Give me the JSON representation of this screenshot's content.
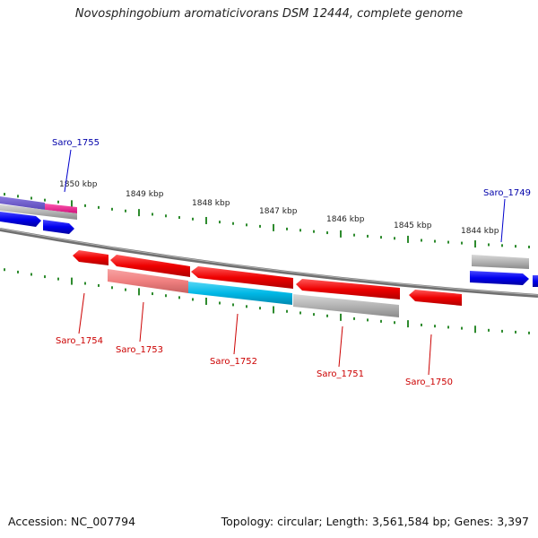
{
  "title": "Novosphingobium aromaticivorans DSM 12444, complete genome",
  "footer": {
    "accession": "Accession: NC_007794",
    "summary": "Topology: circular; Length: 3,561,584 bp; Genes: 3,397"
  },
  "scale_labels": [
    "1850 kbp",
    "1849 kbp",
    "1848 kbp",
    "1847 kbp",
    "1846 kbp",
    "1845 kbp",
    "1844 kbp"
  ],
  "genes_upper": [
    {
      "label": "Saro_1755",
      "color": "#0000aa"
    },
    {
      "label": "Saro_1749",
      "color": "#0000aa"
    }
  ],
  "genes_lower": [
    {
      "label": "Saro_1754",
      "color": "#cc0000"
    },
    {
      "label": "Saro_1753",
      "color": "#cc0000"
    },
    {
      "label": "Saro_1752",
      "color": "#cc0000"
    },
    {
      "label": "Saro_1751",
      "color": "#cc0000"
    },
    {
      "label": "Saro_1750",
      "color": "#cc0000"
    }
  ],
  "colors": {
    "backbone": "#808080",
    "ticks": "#2e8b2e",
    "forward_gene": "#0000ee",
    "reverse_gene": "#ee0000",
    "rna_gene": "#00b8e6",
    "pseudo_gene": "#b0b0b0",
    "light_red": "#f08080"
  }
}
